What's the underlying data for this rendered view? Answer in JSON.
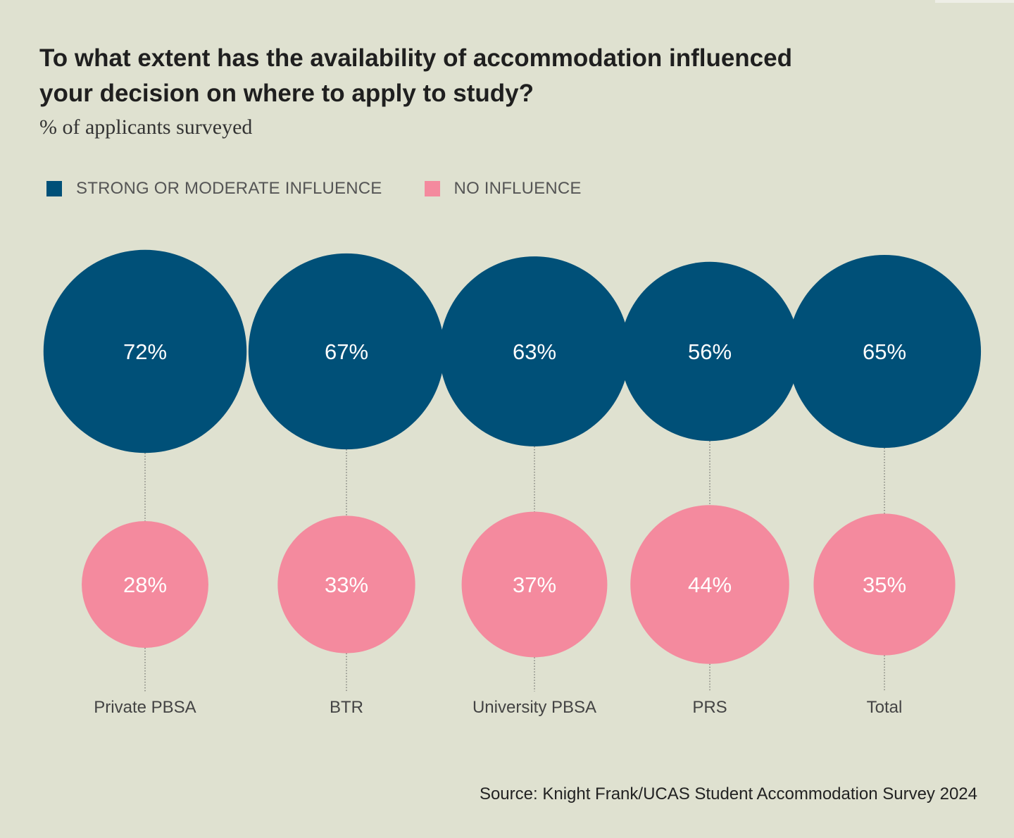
{
  "colors": {
    "strong": "#005078",
    "none": "#f48a9e",
    "background": "#dfe1d0",
    "connector": "#555555"
  },
  "chart_data": {
    "type": "bubble",
    "title": "To what extent has the availability of accommodation influenced\nyour decision on where to apply to study?",
    "subtitle": "% of applicants surveyed",
    "legend": [
      {
        "key": "strong",
        "label": "STRONG OR MODERATE INFLUENCE"
      },
      {
        "key": "none",
        "label": "NO INFLUENCE"
      }
    ],
    "categories": [
      "Private PBSA",
      "BTR",
      "University PBSA",
      "PRS",
      "Total"
    ],
    "series": [
      {
        "name": "STRONG OR MODERATE INFLUENCE",
        "key": "strong",
        "values": [
          72,
          67,
          63,
          56,
          65
        ],
        "labels": [
          "72%",
          "67%",
          "63%",
          "56%",
          "65%"
        ]
      },
      {
        "name": "NO INFLUENCE",
        "key": "none",
        "values": [
          28,
          33,
          37,
          44,
          35
        ],
        "labels": [
          "28%",
          "33%",
          "37%",
          "44%",
          "35%"
        ]
      }
    ],
    "unit": "%"
  },
  "source": "Source: Knight Frank/UCAS Student Accommodation Survey 2024"
}
